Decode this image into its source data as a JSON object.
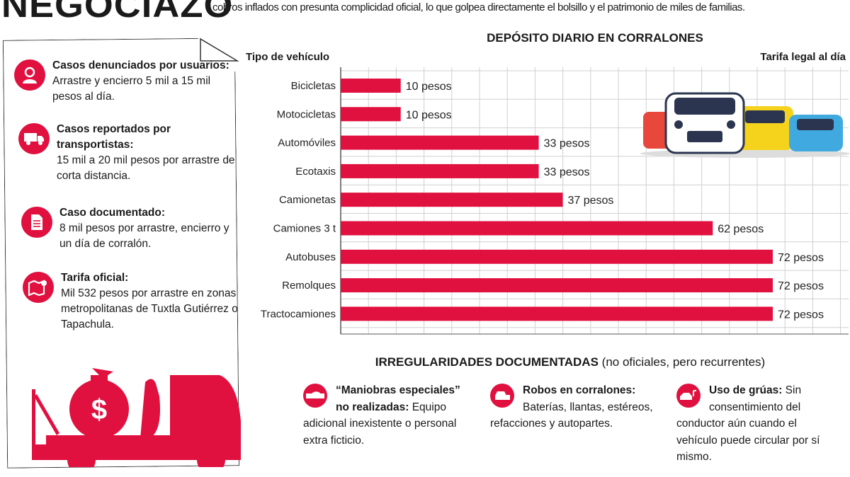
{
  "header": {
    "title": "NEGOCIAZO",
    "subtitle": "cobros inflados con presunta complicidad oficial, lo que golpea directamente el bolsillo y el patrimonio de miles de familias."
  },
  "colors": {
    "accent": "#e0103f",
    "grid": "#d0d0d0"
  },
  "cases": [
    {
      "icon": "user-headset-icon",
      "title": "Casos denunciados por usuarios:",
      "text": "Arrastre y encierro 5 mil a 15 mil pesos al día."
    },
    {
      "icon": "truck-icon",
      "title": "Casos reportados por transportistas:",
      "text": "15 mil a 20 mil pesos por arrastre de corta distancia."
    },
    {
      "icon": "document-icon",
      "title": "Caso documentado:",
      "text": "8 mil pesos por arrastre, encierro y un día de corralón."
    },
    {
      "icon": "map-pin-icon",
      "title": "Tarifa oficial:",
      "text": "Mil 532 pesos por arrastre en zonas metropolitanas de Tuxtla Gutiérrez o Tapachula."
    }
  ],
  "chart_data": {
    "type": "bar",
    "orientation": "horizontal",
    "title": "DEPÓSITO DIARIO EN CORRALONES",
    "ylabel": "Tipo de vehículo",
    "xlabel": "Tarifa legal al día",
    "categories": [
      "Bicicletas",
      "Motocicletas",
      "Automóviles",
      "Ecotaxis",
      "Camionetas",
      "Camiones 3 t",
      "Autobuses",
      "Remolques",
      "Tractocamiones"
    ],
    "values": [
      10,
      10,
      33,
      33,
      37,
      62,
      72,
      72,
      72
    ],
    "data_labels": [
      "10 pesos",
      "10 pesos",
      "33 pesos",
      "33 pesos",
      "37 pesos",
      "62 pesos",
      "72 pesos",
      "72 pesos",
      "72 pesos"
    ],
    "unit": "pesos",
    "grid": true,
    "bar_color": "#e0103f"
  },
  "irregularities": {
    "title": "IRREGULARIDADES DOCUMENTADAS",
    "title_note": "(no oficiales, pero recurrentes)",
    "items": [
      {
        "icon": "car-on-tow-icon",
        "title": "“Maniobras especiales” no realizadas:",
        "text": "Equipo adicional inexistente o personal extra ficticio."
      },
      {
        "icon": "cars-icon",
        "title": "Robos en corralones:",
        "text": "Baterías, llantas, estéreos, refacciones y autopartes."
      },
      {
        "icon": "tow-truck-icon",
        "title": "Uso de grúas:",
        "text": "Sin consentimiento del conductor aún cuando el vehículo puede circular por sí mismo."
      }
    ]
  }
}
